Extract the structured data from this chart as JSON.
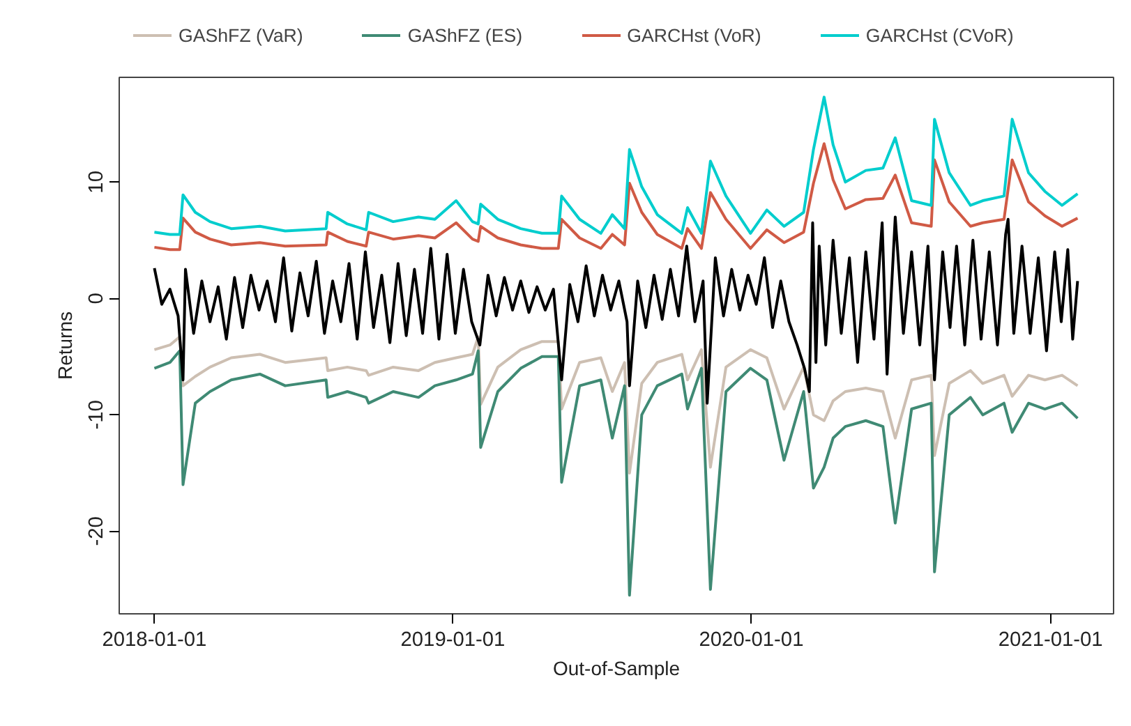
{
  "chart_data": {
    "type": "line",
    "xlabel": "Out-of-Sample",
    "ylabel": "Returns",
    "x": [
      "2018-01-01",
      "2018-01-20",
      "2018-02-01",
      "2018-02-05",
      "2018-02-20",
      "2018-03-10",
      "2018-04-05",
      "2018-05-10",
      "2018-06-10",
      "2018-07-30",
      "2018-08-01",
      "2018-08-25",
      "2018-09-17",
      "2018-09-20",
      "2018-10-20",
      "2018-11-20",
      "2018-12-10",
      "2019-01-05",
      "2019-01-25",
      "2019-02-01",
      "2019-02-04",
      "2019-02-25",
      "2019-03-25",
      "2019-04-20",
      "2019-05-10",
      "2019-05-14",
      "2019-06-05",
      "2019-07-01",
      "2019-07-15",
      "2019-07-30",
      "2019-08-05",
      "2019-08-20",
      "2019-09-08",
      "2019-10-08",
      "2019-10-15",
      "2019-11-01",
      "2019-11-12",
      "2019-12-01",
      "2019-12-31",
      "2020-01-20",
      "2020-02-10",
      "2020-03-05",
      "2020-03-17",
      "2020-03-30",
      "2020-04-10",
      "2020-04-25",
      "2020-05-20",
      "2020-06-10",
      "2020-06-25",
      "2020-07-15",
      "2020-08-08",
      "2020-08-12",
      "2020-08-30",
      "2020-09-25",
      "2020-10-10",
      "2020-11-05",
      "2020-11-15",
      "2020-12-05",
      "2020-12-25",
      "2021-01-15",
      "2021-02-03"
    ],
    "series": [
      {
        "name": "GAShFZ (VaR)",
        "color": "#cdbfb2",
        "values": [
          -4.4,
          -4.0,
          -3.3,
          -7.5,
          -6.7,
          -5.9,
          -5.1,
          -4.8,
          -5.5,
          -5.1,
          -6.2,
          -5.9,
          -6.2,
          -6.6,
          -5.9,
          -6.2,
          -5.5,
          -5.1,
          -4.8,
          -3.3,
          -9.1,
          -5.9,
          -4.4,
          -3.7,
          -3.7,
          -9.5,
          -5.5,
          -5.1,
          -8.0,
          -5.5,
          -15.0,
          -7.3,
          -5.5,
          -4.8,
          -7.0,
          -4.4,
          -14.5,
          -5.9,
          -4.4,
          -5.1,
          -9.5,
          -5.9,
          -10.0,
          -10.5,
          -8.8,
          -8.0,
          -7.7,
          -8.0,
          -12.0,
          -7.0,
          -6.6,
          -13.5,
          -7.3,
          -6.2,
          -7.3,
          -6.6,
          -8.4,
          -6.6,
          -7.0,
          -6.6,
          -7.5
        ]
      },
      {
        "name": "GAShFZ (ES)",
        "color": "#3f8a74",
        "values": [
          -6.0,
          -5.5,
          -4.5,
          -16.0,
          -9.0,
          -8.0,
          -7.0,
          -6.5,
          -7.5,
          -7.0,
          -8.5,
          -8.0,
          -8.5,
          -9.0,
          -8.0,
          -8.5,
          -7.5,
          -7.0,
          -6.5,
          -4.5,
          -12.8,
          -8.0,
          -6.0,
          -5.0,
          -5.0,
          -15.8,
          -7.5,
          -7.0,
          -12.0,
          -7.5,
          -25.5,
          -10.0,
          -7.5,
          -6.5,
          -9.5,
          -6.0,
          -25.0,
          -8.0,
          -6.0,
          -7.0,
          -13.9,
          -8.0,
          -16.3,
          -14.5,
          -12.0,
          -11.0,
          -10.5,
          -11.0,
          -19.3,
          -9.5,
          -9.0,
          -23.5,
          -10.0,
          -8.5,
          -10.0,
          -9.0,
          -11.5,
          -9.0,
          -9.5,
          -9.0,
          -10.3
        ]
      },
      {
        "name": "GARCHst (VoR)",
        "color": "#d05a45",
        "values": [
          4.4,
          4.2,
          4.2,
          6.9,
          5.7,
          5.1,
          4.6,
          4.8,
          4.5,
          4.6,
          5.7,
          4.9,
          4.5,
          5.7,
          5.1,
          5.4,
          5.2,
          6.5,
          5.1,
          4.9,
          6.2,
          5.2,
          4.6,
          4.3,
          4.3,
          6.8,
          5.2,
          4.3,
          5.5,
          4.6,
          9.9,
          7.4,
          5.5,
          4.3,
          6.0,
          4.3,
          9.1,
          6.8,
          4.3,
          5.9,
          4.8,
          5.7,
          9.9,
          13.3,
          10.2,
          7.7,
          8.5,
          8.6,
          10.6,
          6.5,
          6.2,
          11.9,
          8.3,
          6.2,
          6.5,
          6.8,
          11.9,
          8.3,
          7.1,
          6.2,
          6.9
        ]
      },
      {
        "name": "GARCHst (CVoR)",
        "color": "#00cdcd",
        "values": [
          5.7,
          5.5,
          5.5,
          8.9,
          7.4,
          6.6,
          6.0,
          6.2,
          5.8,
          6.0,
          7.4,
          6.4,
          5.9,
          7.4,
          6.6,
          7.0,
          6.8,
          8.4,
          6.6,
          6.4,
          8.1,
          6.8,
          6.0,
          5.6,
          5.6,
          8.8,
          6.8,
          5.6,
          7.2,
          6.0,
          12.8,
          9.6,
          7.2,
          5.6,
          7.8,
          5.6,
          11.8,
          8.8,
          5.6,
          7.6,
          6.2,
          7.4,
          12.8,
          17.3,
          13.2,
          10.0,
          11.0,
          11.2,
          13.8,
          8.4,
          8.0,
          15.4,
          10.8,
          8.0,
          8.4,
          8.8,
          15.4,
          10.8,
          9.2,
          8.0,
          9.0
        ]
      },
      {
        "color": "#000000",
        "x": [
          "2018-01-01",
          "2018-01-10",
          "2018-01-20",
          "2018-01-30",
          "2018-02-05",
          "2018-02-08",
          "2018-02-18",
          "2018-02-28",
          "2018-03-10",
          "2018-03-20",
          "2018-03-30",
          "2018-04-09",
          "2018-04-19",
          "2018-04-29",
          "2018-05-09",
          "2018-05-19",
          "2018-05-29",
          "2018-06-08",
          "2018-06-18",
          "2018-06-28",
          "2018-07-08",
          "2018-07-18",
          "2018-07-28",
          "2018-08-07",
          "2018-08-17",
          "2018-08-27",
          "2018-09-06",
          "2018-09-16",
          "2018-09-26",
          "2018-10-06",
          "2018-10-16",
          "2018-10-26",
          "2018-11-05",
          "2018-11-15",
          "2018-11-25",
          "2018-12-05",
          "2018-12-15",
          "2018-12-25",
          "2019-01-04",
          "2019-01-14",
          "2019-01-24",
          "2019-02-03",
          "2019-02-13",
          "2019-02-23",
          "2019-03-05",
          "2019-03-15",
          "2019-03-25",
          "2019-04-04",
          "2019-04-14",
          "2019-04-24",
          "2019-05-04",
          "2019-05-14",
          "2019-05-24",
          "2019-06-03",
          "2019-06-13",
          "2019-06-23",
          "2019-07-03",
          "2019-07-13",
          "2019-07-23",
          "2019-08-02",
          "2019-08-05",
          "2019-08-15",
          "2019-08-25",
          "2019-09-04",
          "2019-09-14",
          "2019-09-24",
          "2019-10-04",
          "2019-10-14",
          "2019-10-24",
          "2019-11-03",
          "2019-11-08",
          "2019-11-18",
          "2019-11-28",
          "2019-12-08",
          "2019-12-18",
          "2019-12-28",
          "2020-01-07",
          "2020-01-17",
          "2020-01-27",
          "2020-02-06",
          "2020-02-16",
          "2020-02-26",
          "2020-03-06",
          "2020-03-12",
          "2020-03-16",
          "2020-03-20",
          "2020-03-24",
          "2020-04-01",
          "2020-04-10",
          "2020-04-20",
          "2020-04-30",
          "2020-05-10",
          "2020-05-20",
          "2020-05-30",
          "2020-06-09",
          "2020-06-15",
          "2020-06-25",
          "2020-07-05",
          "2020-07-15",
          "2020-07-25",
          "2020-08-04",
          "2020-08-12",
          "2020-08-22",
          "2020-08-31",
          "2020-09-08",
          "2020-09-18",
          "2020-09-28",
          "2020-10-08",
          "2020-10-18",
          "2020-10-28",
          "2020-11-07",
          "2020-11-10",
          "2020-11-17",
          "2020-11-27",
          "2020-12-07",
          "2020-12-17",
          "2020-12-27",
          "2021-01-06",
          "2021-01-14",
          "2021-01-22",
          "2021-01-28",
          "2021-02-03"
        ],
        "values": [
          2.6,
          -0.5,
          0.8,
          -1.5,
          -7.0,
          2.5,
          -3.0,
          1.5,
          -2.0,
          1.0,
          -3.5,
          1.8,
          -2.5,
          2.0,
          -1.0,
          1.5,
          -2.0,
          3.5,
          -2.8,
          2.2,
          -1.5,
          3.2,
          -3.0,
          1.5,
          -2.0,
          3.0,
          -3.5,
          4.0,
          -2.5,
          2.0,
          -3.8,
          3.0,
          -3.2,
          2.5,
          -3.0,
          4.3,
          -3.5,
          3.8,
          -3.0,
          2.5,
          -2.0,
          -4.0,
          2.0,
          -1.5,
          1.8,
          -1.0,
          1.5,
          -1.2,
          1.0,
          -1.0,
          0.8,
          -7.0,
          1.2,
          -2.0,
          2.8,
          -1.5,
          2.0,
          -1.0,
          1.5,
          -2.0,
          -7.5,
          1.5,
          -2.5,
          2.0,
          -1.8,
          2.5,
          -1.5,
          4.5,
          -2.0,
          1.5,
          -9.0,
          3.5,
          -1.5,
          2.5,
          -1.0,
          2.0,
          -0.5,
          3.5,
          -2.5,
          1.5,
          -2.0,
          -4.0,
          -6.0,
          -8.0,
          6.5,
          -5.5,
          4.5,
          -4.0,
          5.0,
          -3.0,
          3.5,
          -5.5,
          4.0,
          -3.5,
          6.5,
          -6.5,
          7.0,
          -3.0,
          4.0,
          -4.0,
          4.5,
          -7.0,
          4.0,
          -2.5,
          4.5,
          -4.0,
          5.0,
          -3.5,
          4.0,
          -4.0,
          5.5,
          6.8,
          -3.0,
          4.5,
          -3.0,
          3.5,
          -4.5,
          4.0,
          -2.0,
          4.2,
          -3.5,
          1.5
        ]
      }
    ],
    "xlim": [
      "2017-11-19",
      "2021-03-19"
    ],
    "xticks": [
      "2018-01-01",
      "2019-01-01",
      "2020-01-01",
      "2021-01-01"
    ],
    "ylim": [
      -27.1,
      19
    ],
    "yticks": [
      -20,
      -10,
      0,
      10
    ],
    "grid": false,
    "legend": "top",
    "line_style": "solid",
    "marker": "none"
  }
}
